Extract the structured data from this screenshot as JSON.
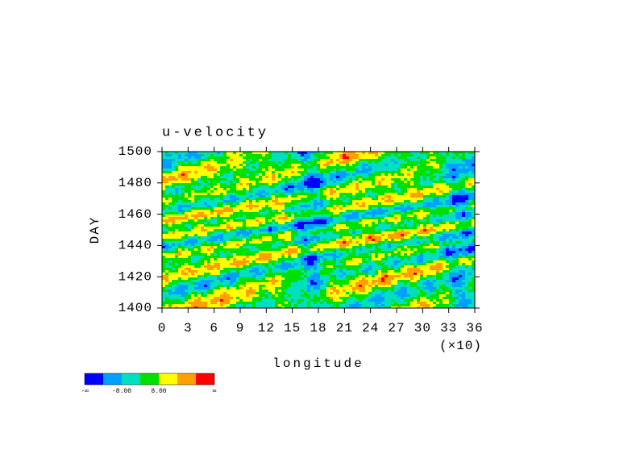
{
  "chart_data": {
    "type": "contour",
    "title": "u-velocity",
    "xlabel": "longitude",
    "xscale_note": "(×10)",
    "ylabel": "DAY",
    "xlim": [
      0,
      36
    ],
    "xticks": [
      0,
      3,
      6,
      9,
      12,
      15,
      18,
      21,
      24,
      27,
      30,
      33,
      36
    ],
    "ylim": [
      1400,
      1500
    ],
    "yticks": [
      1400,
      1420,
      1440,
      1460,
      1480,
      1500
    ],
    "colorbar": {
      "colors": [
        "#0000ff",
        "#00a0ff",
        "#00e0c0",
        "#00e000",
        "#ffff00",
        "#ffa000",
        "#ff0000"
      ],
      "labels": [
        "-∞",
        "-8.00",
        "8.00",
        "∞"
      ]
    }
  }
}
